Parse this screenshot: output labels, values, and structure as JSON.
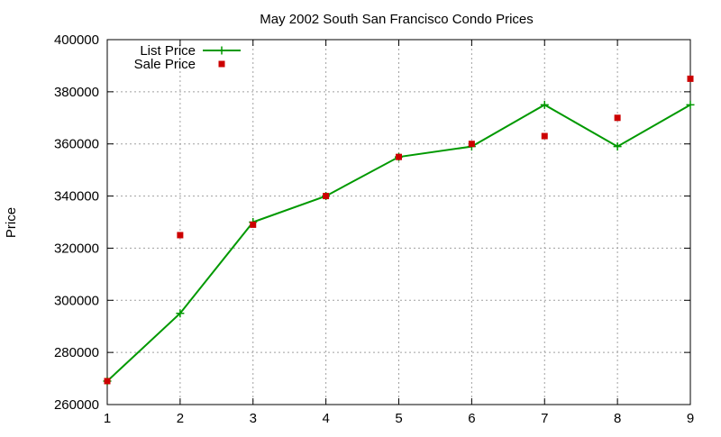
{
  "chart_data": {
    "type": "line",
    "title": "May 2002 South San Francisco Condo Prices",
    "xlabel": "",
    "ylabel": "Price",
    "x": [
      1,
      2,
      3,
      4,
      5,
      6,
      7,
      8,
      9
    ],
    "xlim": [
      1,
      9
    ],
    "ylim": [
      260000,
      400000
    ],
    "xticks": [
      1,
      2,
      3,
      4,
      5,
      6,
      7,
      8,
      9
    ],
    "yticks": [
      260000,
      280000,
      300000,
      320000,
      340000,
      360000,
      380000,
      400000
    ],
    "grid": true,
    "legend_position": "top-left",
    "series": [
      {
        "name": "List Price",
        "style": "line-points",
        "marker": "plus",
        "color": "#009900",
        "values": [
          269000,
          295000,
          330000,
          340000,
          355000,
          359000,
          375000,
          359000,
          375000
        ]
      },
      {
        "name": "Sale Price",
        "style": "points",
        "marker": "square",
        "color": "#cc0000",
        "values": [
          269000,
          325000,
          329000,
          340000,
          355000,
          360000,
          363000,
          370000,
          385000
        ]
      }
    ]
  }
}
